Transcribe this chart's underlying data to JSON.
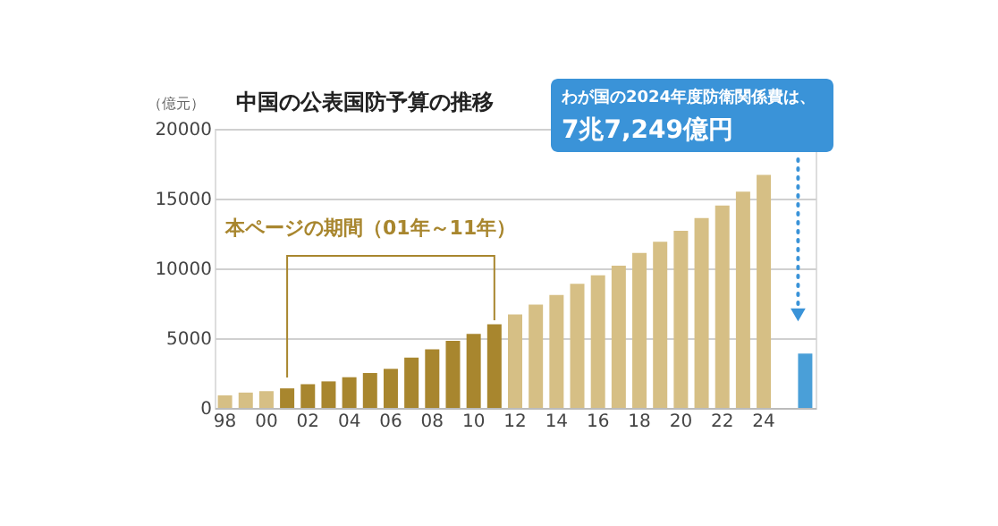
{
  "chart_data": {
    "type": "bar",
    "title": "中国の公表国防予算の推移",
    "ylabel": "（億元）",
    "categories": [
      "98",
      null,
      "00",
      null,
      "02",
      null,
      "04",
      null,
      "06",
      null,
      "08",
      null,
      "10",
      null,
      "12",
      null,
      "14",
      null,
      "16",
      null,
      "18",
      null,
      "20",
      null,
      "22",
      null,
      "24",
      null,
      null
    ],
    "values": [
      900,
      1100,
      1200,
      1400,
      1700,
      1900,
      2200,
      2500,
      2800,
      3600,
      4200,
      4800,
      5300,
      6000,
      6700,
      7400,
      8100,
      8900,
      9500,
      10200,
      11100,
      11900,
      12700,
      13600,
      14500,
      15500,
      16700,
      null,
      3900
    ],
    "colors": [
      "#d6bf85",
      "#d6bf85",
      "#d6bf85",
      "#a8862e",
      "#a8862e",
      "#a8862e",
      "#a8862e",
      "#a8862e",
      "#a8862e",
      "#a8862e",
      "#a8862e",
      "#a8862e",
      "#a8862e",
      "#a8862e",
      "#d6bf85",
      "#d6bf85",
      "#d6bf85",
      "#d6bf85",
      "#d6bf85",
      "#d6bf85",
      "#d6bf85",
      "#d6bf85",
      "#d6bf85",
      "#d6bf85",
      "#d6bf85",
      "#d6bf85",
      "#d6bf85",
      "#d6bf85",
      "#4a9fd8"
    ],
    "ylim": [
      0,
      20000
    ],
    "yticks": [
      0,
      5000,
      10000,
      15000,
      20000
    ],
    "grid": "y",
    "annotations": [
      "本ページの期間（01年～11年）",
      "わが国の2024年度防衛関係費は、",
      "7兆7,249億円"
    ]
  }
}
